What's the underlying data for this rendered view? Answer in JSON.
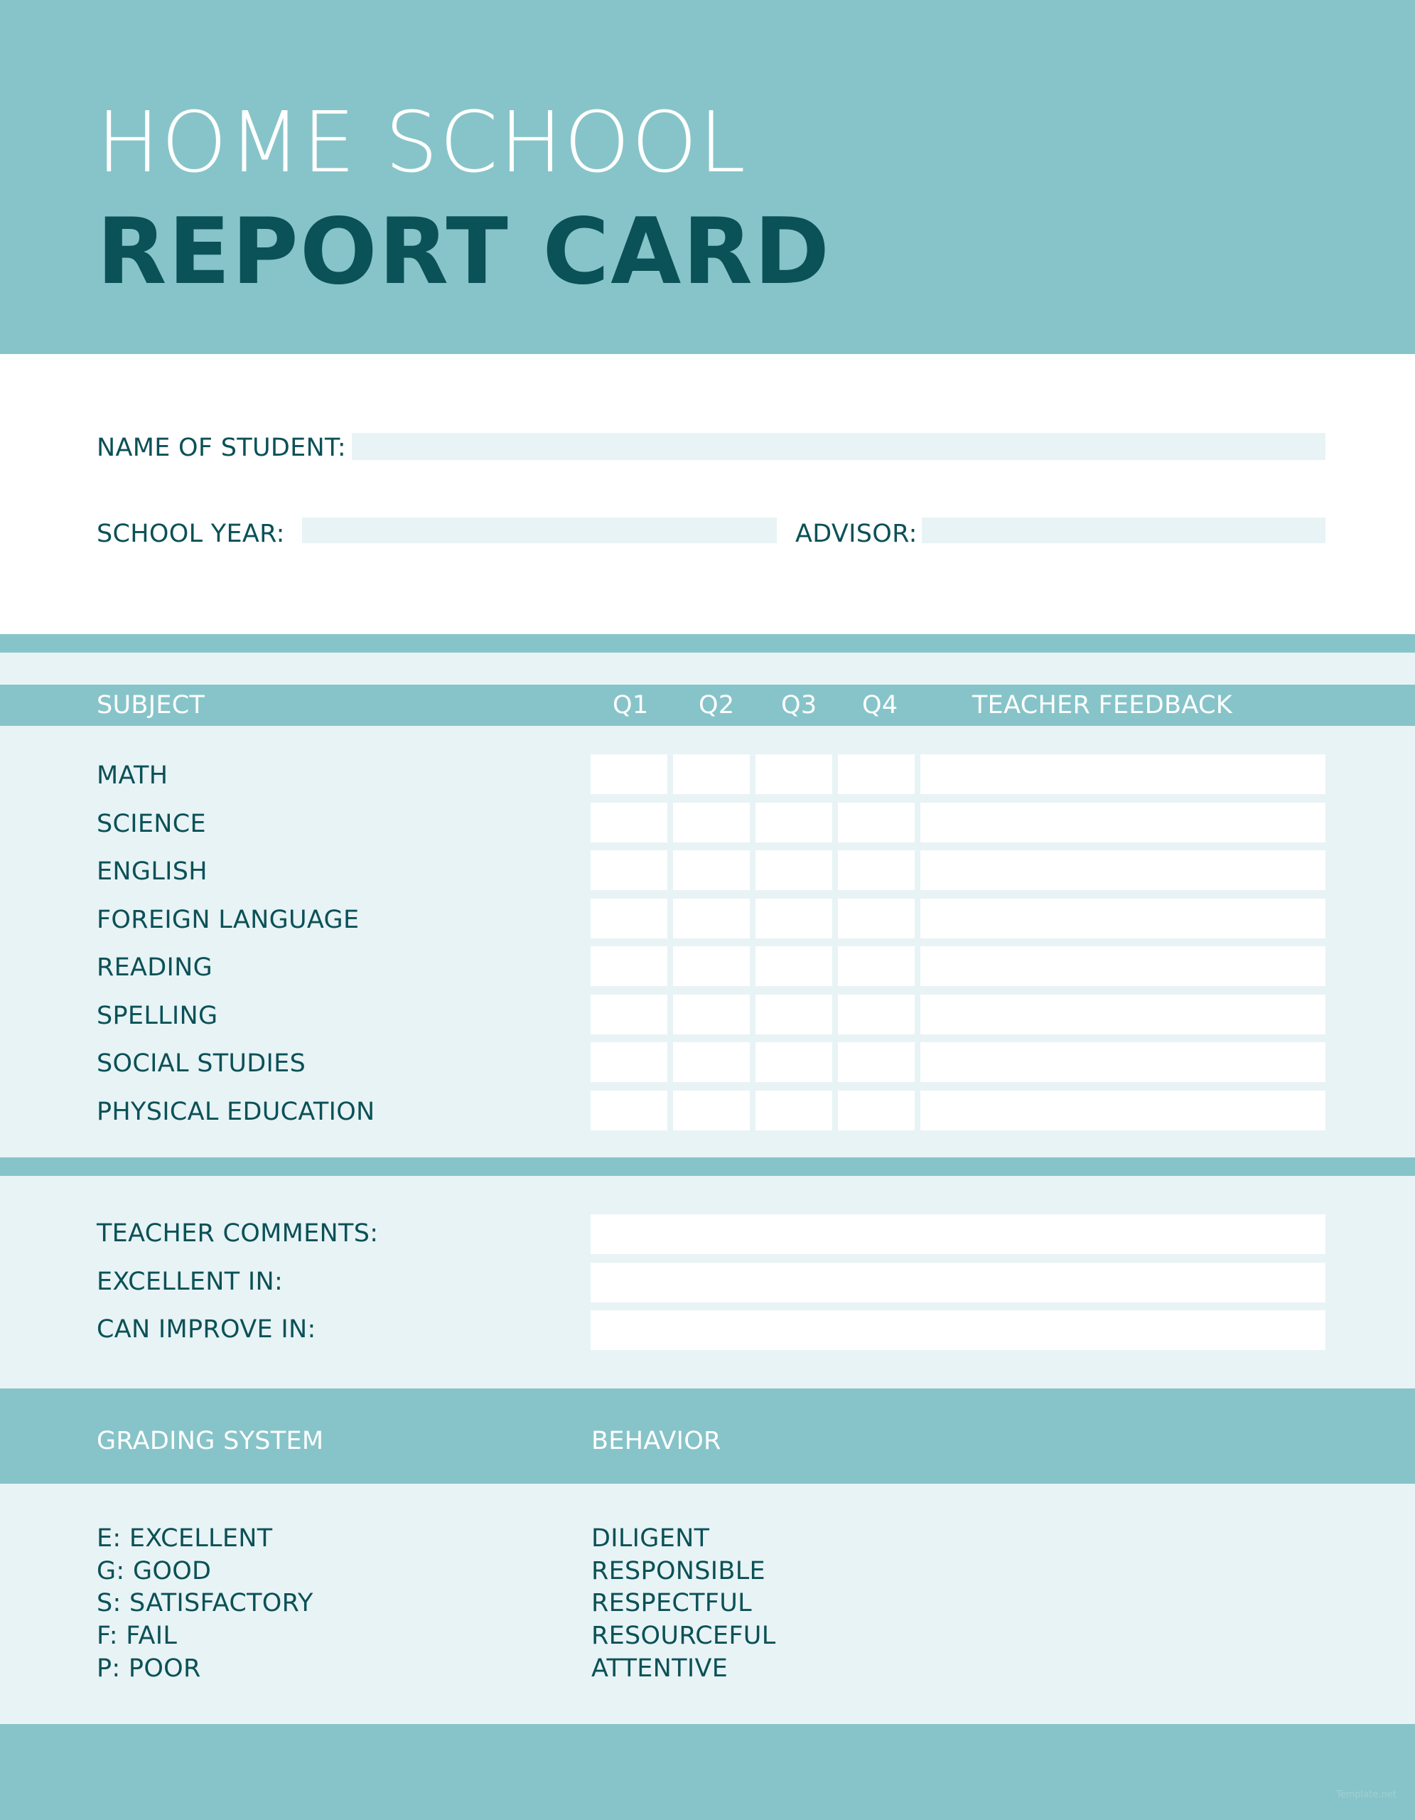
{
  "header": {
    "title_line1": "HOME SCHOOL",
    "title_line2": "REPORT CARD"
  },
  "info": {
    "name_label": "NAME OF STUDENT:",
    "name_value": "",
    "year_label": "SCHOOL YEAR:",
    "year_value": "",
    "advisor_label": "ADVISOR:",
    "advisor_value": ""
  },
  "grades_table": {
    "columns": [
      "SUBJECT",
      "Q1",
      "Q2",
      "Q3",
      "Q4",
      "TEACHER FEEDBACK"
    ],
    "subjects": [
      "MATH",
      "SCIENCE",
      "ENGLISH",
      "FOREIGN LANGUAGE",
      "READING",
      "SPELLING",
      "SOCIAL STUDIES",
      "PHYSICAL EDUCATION"
    ]
  },
  "comments": {
    "items": [
      "TEACHER COMMENTS:",
      "EXCELLENT IN:",
      "CAN IMPROVE IN:"
    ]
  },
  "grading": {
    "title": "GRADING SYSTEM",
    "items": [
      "E: EXCELLENT",
      "G: GOOD",
      "S: SATISFACTORY",
      "F: FAIL",
      "P: POOR"
    ]
  },
  "behavior": {
    "title": "BEHAVIOR",
    "items": [
      "DILIGENT",
      "RESPONSIBLE",
      "RESPECTFUL",
      "RESOURCEFUL",
      "ATTENTIVE"
    ]
  },
  "watermark": "Template.net",
  "colors": {
    "teal": "#87c4c9",
    "light": "#e8f3f5",
    "dark_text": "#0b5157"
  }
}
